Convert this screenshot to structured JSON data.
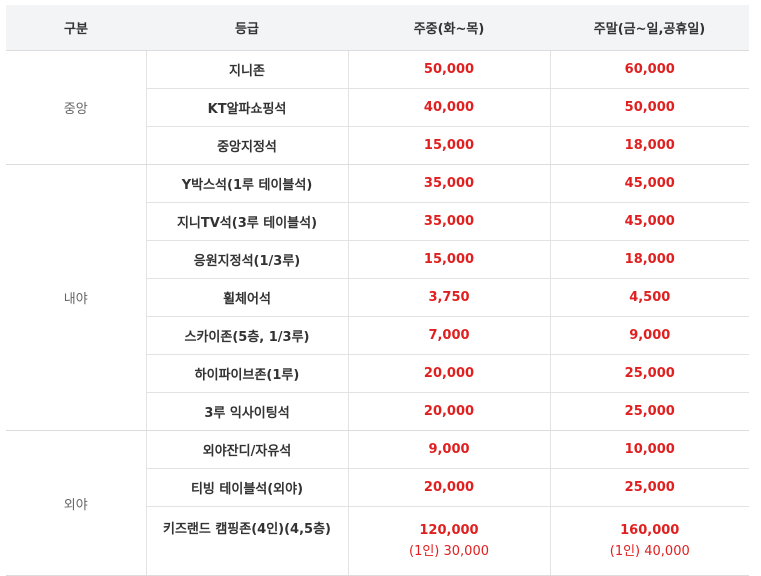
{
  "headers": {
    "category": "구분",
    "grade": "등급",
    "weekday": "주중(화~목)",
    "weekend": "주말(금~일,공휴일)"
  },
  "groups": [
    {
      "category": "중앙",
      "rows": [
        {
          "grade": "지니존",
          "weekday": "50,000",
          "weekend": "60,000"
        },
        {
          "grade": "KT알파쇼핑석",
          "weekday": "40,000",
          "weekend": "50,000"
        },
        {
          "grade": "중앙지정석",
          "weekday": "15,000",
          "weekend": "18,000"
        }
      ]
    },
    {
      "category": "내야",
      "rows": [
        {
          "grade": "Y박스석(1루 테이블석)",
          "weekday": "35,000",
          "weekend": "45,000"
        },
        {
          "grade": "지니TV석(3루 테이블석)",
          "weekday": "35,000",
          "weekend": "45,000"
        },
        {
          "grade": "응원지정석(1/3루)",
          "weekday": "15,000",
          "weekend": "18,000"
        },
        {
          "grade": "휠체어석",
          "weekday": "3,750",
          "weekend": "4,500"
        },
        {
          "grade": "스카이존(5층, 1/3루)",
          "weekday": "7,000",
          "weekend": "9,000"
        },
        {
          "grade": "하이파이브존(1루)",
          "weekday": "20,000",
          "weekend": "25,000"
        },
        {
          "grade": "3루 익사이팅석",
          "weekday": "20,000",
          "weekend": "25,000"
        }
      ]
    },
    {
      "category": "외야",
      "rows": [
        {
          "grade": "외야잔디/자유석",
          "weekday": "9,000",
          "weekend": "10,000"
        },
        {
          "grade": "티빙 테이블석(외야)",
          "weekday": "20,000",
          "weekend": "25,000"
        },
        {
          "grade": "키즈랜드 캠핑존(4인)(4,5층)",
          "weekday": "120,000",
          "weekday_sub": "(1인) 30,000",
          "weekend": "160,000",
          "weekend_sub": "(1인) 40,000"
        }
      ]
    }
  ],
  "colors": {
    "price": "#e02020",
    "header_bg": "#f3f4f6",
    "border": "#e3e3e3"
  }
}
